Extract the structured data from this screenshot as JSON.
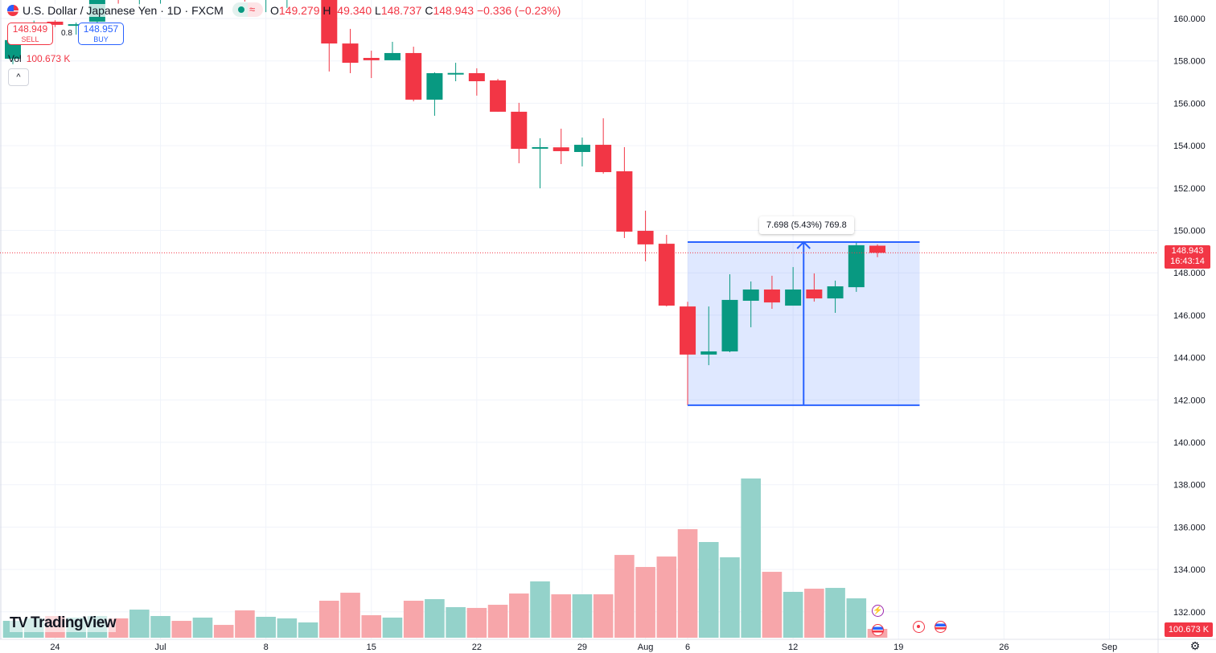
{
  "header": {
    "symbol_title": "U.S. Dollar / Japanese Yen · 1D · FXCM",
    "market_status_icon": "green-dot-icon",
    "wave_glyph": "≈",
    "ohlc": {
      "o_label": "O",
      "o": "149.279",
      "h_label": "H",
      "h": "149.340",
      "l_label": "L",
      "l": "148.737",
      "c_label": "C",
      "c": "148.943",
      "change": "−0.336 (−0.23%)"
    }
  },
  "trade": {
    "sell_price": "148.949",
    "sell_label": "SELL",
    "spread": "0.8",
    "buy_price": "148.957",
    "buy_label": "BUY"
  },
  "volume_legend": {
    "label": "Vol",
    "value": "100.673 K"
  },
  "collapse_glyph": "^",
  "price_range_label": "7.698 (5.43%) 769.8",
  "last_price": {
    "price": "148.943",
    "countdown": "16:43:14"
  },
  "last_volume": "100.673 K",
  "logo": {
    "mark": "TV",
    "text": "TradingView"
  },
  "settings_icon": "gear-icon",
  "colors": {
    "up": "#089981",
    "down": "#f23645",
    "up_volume": "#94d2ca",
    "down_volume": "#f7a6aa",
    "range_box": "#2962ff",
    "grid": "#f0f3fa"
  },
  "chart_data": {
    "type": "candlestick",
    "symbol": "U.S. Dollar / Japanese Yen",
    "interval": "1D",
    "ylim": [
      131.2,
      161.2
    ],
    "y_ticks": [
      "160.000",
      "158.000",
      "156.000",
      "154.000",
      "152.000",
      "150.000",
      "148.000",
      "146.000",
      "144.000",
      "142.000",
      "140.000",
      "138.000",
      "136.000",
      "134.000",
      "132.000"
    ],
    "x_ticks": [
      {
        "label": "24",
        "bar": 2
      },
      {
        "label": "Jul",
        "bar": 7
      },
      {
        "label": "8",
        "bar": 12
      },
      {
        "label": "15",
        "bar": 17
      },
      {
        "label": "22",
        "bar": 22
      },
      {
        "label": "29",
        "bar": 27
      },
      {
        "label": "Aug",
        "bar": 30
      },
      {
        "label": "6",
        "bar": 32
      },
      {
        "label": "12",
        "bar": 37
      },
      {
        "label": "19",
        "bar": 42
      },
      {
        "label": "26",
        "bar": 47
      },
      {
        "label": "Sep",
        "bar": 52
      }
    ],
    "grid": true,
    "candles": [
      {
        "o": 158.1,
        "h": 159.05,
        "l": 157.84,
        "c": 158.98,
        "v": 192
      },
      {
        "o": 159.7,
        "h": 159.9,
        "l": 159.5,
        "c": 159.78,
        "v": 220
      },
      {
        "o": 159.85,
        "h": 159.92,
        "l": 159.6,
        "c": 159.7,
        "v": 247
      },
      {
        "o": 159.66,
        "h": 159.81,
        "l": 159.24,
        "c": 159.73,
        "v": 229
      },
      {
        "o": 159.85,
        "h": 161.1,
        "l": 159.45,
        "c": 160.9,
        "v": 247
      },
      {
        "o": 161.0,
        "h": 161.2,
        "l": 160.7,
        "c": 160.88,
        "v": 220
      },
      {
        "o": 160.88,
        "h": 161.2,
        "l": 160.6,
        "c": 160.98,
        "v": 320
      },
      {
        "o": 160.95,
        "h": 161.3,
        "l": 160.7,
        "c": 161.05,
        "v": 247
      },
      {
        "o": 161.4,
        "h": 161.6,
        "l": 161.0,
        "c": 161.2,
        "v": 192
      },
      {
        "o": 161.2,
        "h": 161.8,
        "l": 161.0,
        "c": 161.6,
        "v": 229
      },
      {
        "o": 161.6,
        "h": 161.8,
        "l": 161.1,
        "c": 161.3,
        "v": 146
      },
      {
        "o": 161.1,
        "h": 161.3,
        "l": 160.8,
        "c": 160.95,
        "v": 311
      },
      {
        "o": 160.95,
        "h": 161.2,
        "l": 160.3,
        "c": 161.0,
        "v": 238
      },
      {
        "o": 160.95,
        "h": 161.2,
        "l": 160.5,
        "c": 161.05,
        "v": 220
      },
      {
        "o": 161.05,
        "h": 161.8,
        "l": 160.9,
        "c": 161.6,
        "v": 174
      },
      {
        "o": 161.6,
        "h": 161.9,
        "l": 157.5,
        "c": 158.82,
        "v": 421
      },
      {
        "o": 158.82,
        "h": 159.51,
        "l": 157.42,
        "c": 157.91,
        "v": 512
      },
      {
        "o": 158.14,
        "h": 158.48,
        "l": 157.19,
        "c": 158.03,
        "v": 256
      },
      {
        "o": 158.03,
        "h": 158.9,
        "l": 158.03,
        "c": 158.37,
        "v": 229
      },
      {
        "o": 158.37,
        "h": 158.67,
        "l": 156.09,
        "c": 156.17,
        "v": 421
      },
      {
        "o": 156.17,
        "h": 157.46,
        "l": 155.41,
        "c": 157.42,
        "v": 439
      },
      {
        "o": 157.4,
        "h": 157.91,
        "l": 157.04,
        "c": 157.43,
        "v": 348
      },
      {
        "o": 157.42,
        "h": 157.65,
        "l": 156.36,
        "c": 157.04,
        "v": 339
      },
      {
        "o": 157.08,
        "h": 157.15,
        "l": 155.6,
        "c": 155.6,
        "v": 375
      },
      {
        "o": 155.6,
        "h": 156.02,
        "l": 153.17,
        "c": 153.85,
        "v": 503
      },
      {
        "o": 153.9,
        "h": 154.35,
        "l": 151.99,
        "c": 153.93,
        "v": 641
      },
      {
        "o": 153.92,
        "h": 154.8,
        "l": 153.13,
        "c": 153.74,
        "v": 494
      },
      {
        "o": 153.7,
        "h": 154.38,
        "l": 153.02,
        "c": 154.04,
        "v": 494
      },
      {
        "o": 154.04,
        "h": 155.29,
        "l": 152.68,
        "c": 152.75,
        "v": 494
      },
      {
        "o": 152.79,
        "h": 153.93,
        "l": 149.64,
        "c": 149.94,
        "v": 942
      },
      {
        "o": 149.98,
        "h": 150.93,
        "l": 148.54,
        "c": 149.34,
        "v": 805
      },
      {
        "o": 149.37,
        "h": 149.79,
        "l": 146.41,
        "c": 146.45,
        "v": 924
      },
      {
        "o": 146.41,
        "h": 146.63,
        "l": 141.75,
        "c": 144.14,
        "v": 1235
      },
      {
        "o": 144.14,
        "h": 146.41,
        "l": 143.64,
        "c": 144.29,
        "v": 1089
      },
      {
        "o": 144.29,
        "h": 147.93,
        "l": 144.25,
        "c": 146.72,
        "v": 915
      },
      {
        "o": 146.68,
        "h": 147.59,
        "l": 145.43,
        "c": 147.21,
        "v": 1812
      },
      {
        "o": 147.21,
        "h": 147.86,
        "l": 146.3,
        "c": 146.6,
        "v": 750
      },
      {
        "o": 146.45,
        "h": 148.27,
        "l": 146.45,
        "c": 147.21,
        "v": 522
      },
      {
        "o": 147.21,
        "h": 147.97,
        "l": 146.64,
        "c": 146.79,
        "v": 558
      },
      {
        "o": 146.79,
        "h": 147.63,
        "l": 146.11,
        "c": 147.36,
        "v": 567
      },
      {
        "o": 147.32,
        "h": 149.45,
        "l": 147.1,
        "c": 149.3,
        "v": 448
      },
      {
        "o": 149.279,
        "h": 149.34,
        "l": 148.737,
        "c": 148.943,
        "v": 100.673
      }
    ],
    "volume_unit": "K",
    "price_range": {
      "from_bar": 32,
      "to_bar": 43,
      "low": 141.75,
      "high": 149.45,
      "label": "7.698 (5.43%) 769.8"
    },
    "last_price_line": 148.943
  }
}
